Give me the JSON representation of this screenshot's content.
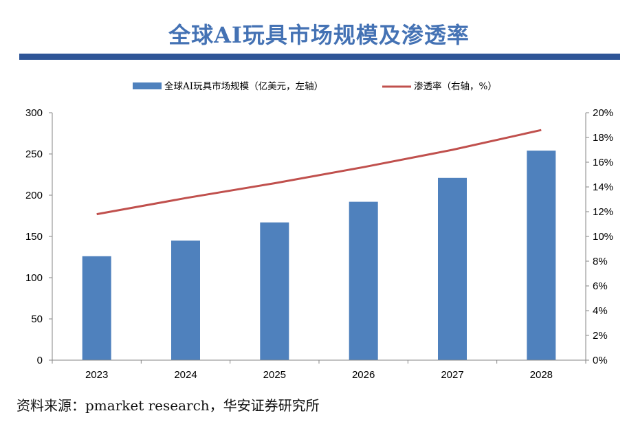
{
  "chart_data": {
    "type": "bar",
    "title": "全球AI玩具市场规模及渗透率",
    "categories": [
      "2023",
      "2024",
      "2025",
      "2026",
      "2027",
      "2028"
    ],
    "series": [
      {
        "name": "全球AI玩具市场规模（亿美元，左轴）",
        "type": "bar",
        "axis": "left",
        "color": "#4f81bd",
        "values": [
          126,
          145,
          167,
          192,
          221,
          254
        ]
      },
      {
        "name": "渗透率（右轴，%）",
        "type": "line",
        "axis": "right",
        "color": "#c0504d",
        "values": [
          11.8,
          13.1,
          14.3,
          15.6,
          17.0,
          18.6
        ]
      }
    ],
    "y_left": {
      "min": 0,
      "max": 300,
      "ticks": [
        "0",
        "50",
        "100",
        "150",
        "200",
        "250",
        "300"
      ]
    },
    "y_right": {
      "min": 0,
      "max": 20,
      "ticks": [
        "0%",
        "2%",
        "4%",
        "6%",
        "8%",
        "10%",
        "12%",
        "14%",
        "16%",
        "18%",
        "20%"
      ]
    },
    "grid": false,
    "legend_position": "top"
  },
  "source": "资料来源：pmarket research，华安证券研究所"
}
